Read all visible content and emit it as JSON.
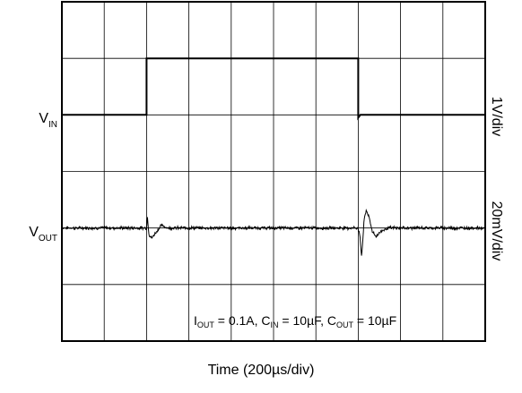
{
  "chart_data": {
    "type": "line",
    "title": "",
    "xlabel": "Time (200µs/div)",
    "x_divisions": 10,
    "y_divisions": 6,
    "grid": true,
    "traces": [
      {
        "channel_label": "V",
        "channel_sub": "IN",
        "scale": "1V/div",
        "points": [
          {
            "t_div": 0.0,
            "level_div": 0.0
          },
          {
            "t_div": 2.0,
            "level_div": 0.0
          },
          {
            "t_div": 2.0,
            "level_div": 1.0
          },
          {
            "t_div": 7.0,
            "level_div": 1.0
          },
          {
            "t_div": 7.0,
            "level_div": -0.05
          },
          {
            "t_div": 7.05,
            "level_div": 0.0
          },
          {
            "t_div": 10.0,
            "level_div": 0.0
          }
        ]
      },
      {
        "channel_label": "V",
        "channel_sub": "OUT",
        "scale": "20mV/div",
        "transients": [
          {
            "t_div": 2.0,
            "shape": [
              [
                0.0,
                0.0
              ],
              [
                0.02,
                0.2
              ],
              [
                0.06,
                -0.12
              ],
              [
                0.12,
                -0.18
              ],
              [
                0.22,
                -0.08
              ],
              [
                0.35,
                0.05
              ],
              [
                0.5,
                0.0
              ]
            ]
          },
          {
            "t_div": 7.0,
            "shape": [
              [
                0.0,
                0.0
              ],
              [
                0.04,
                -0.15
              ],
              [
                0.08,
                -0.5
              ],
              [
                0.11,
                -0.2
              ],
              [
                0.14,
                0.15
              ],
              [
                0.19,
                0.32
              ],
              [
                0.25,
                0.2
              ],
              [
                0.33,
                -0.05
              ],
              [
                0.42,
                -0.15
              ],
              [
                0.55,
                -0.05
              ],
              [
                0.7,
                0.0
              ]
            ]
          }
        ]
      }
    ],
    "annotation": {
      "parts": [
        {
          "text": "I"
        },
        {
          "sub": "OUT"
        },
        {
          "text": " = 0.1A, C"
        },
        {
          "sub": "IN"
        },
        {
          "text": " = 10µF, C"
        },
        {
          "sub": "OUT"
        },
        {
          "text": " = 10µF"
        }
      ]
    }
  }
}
